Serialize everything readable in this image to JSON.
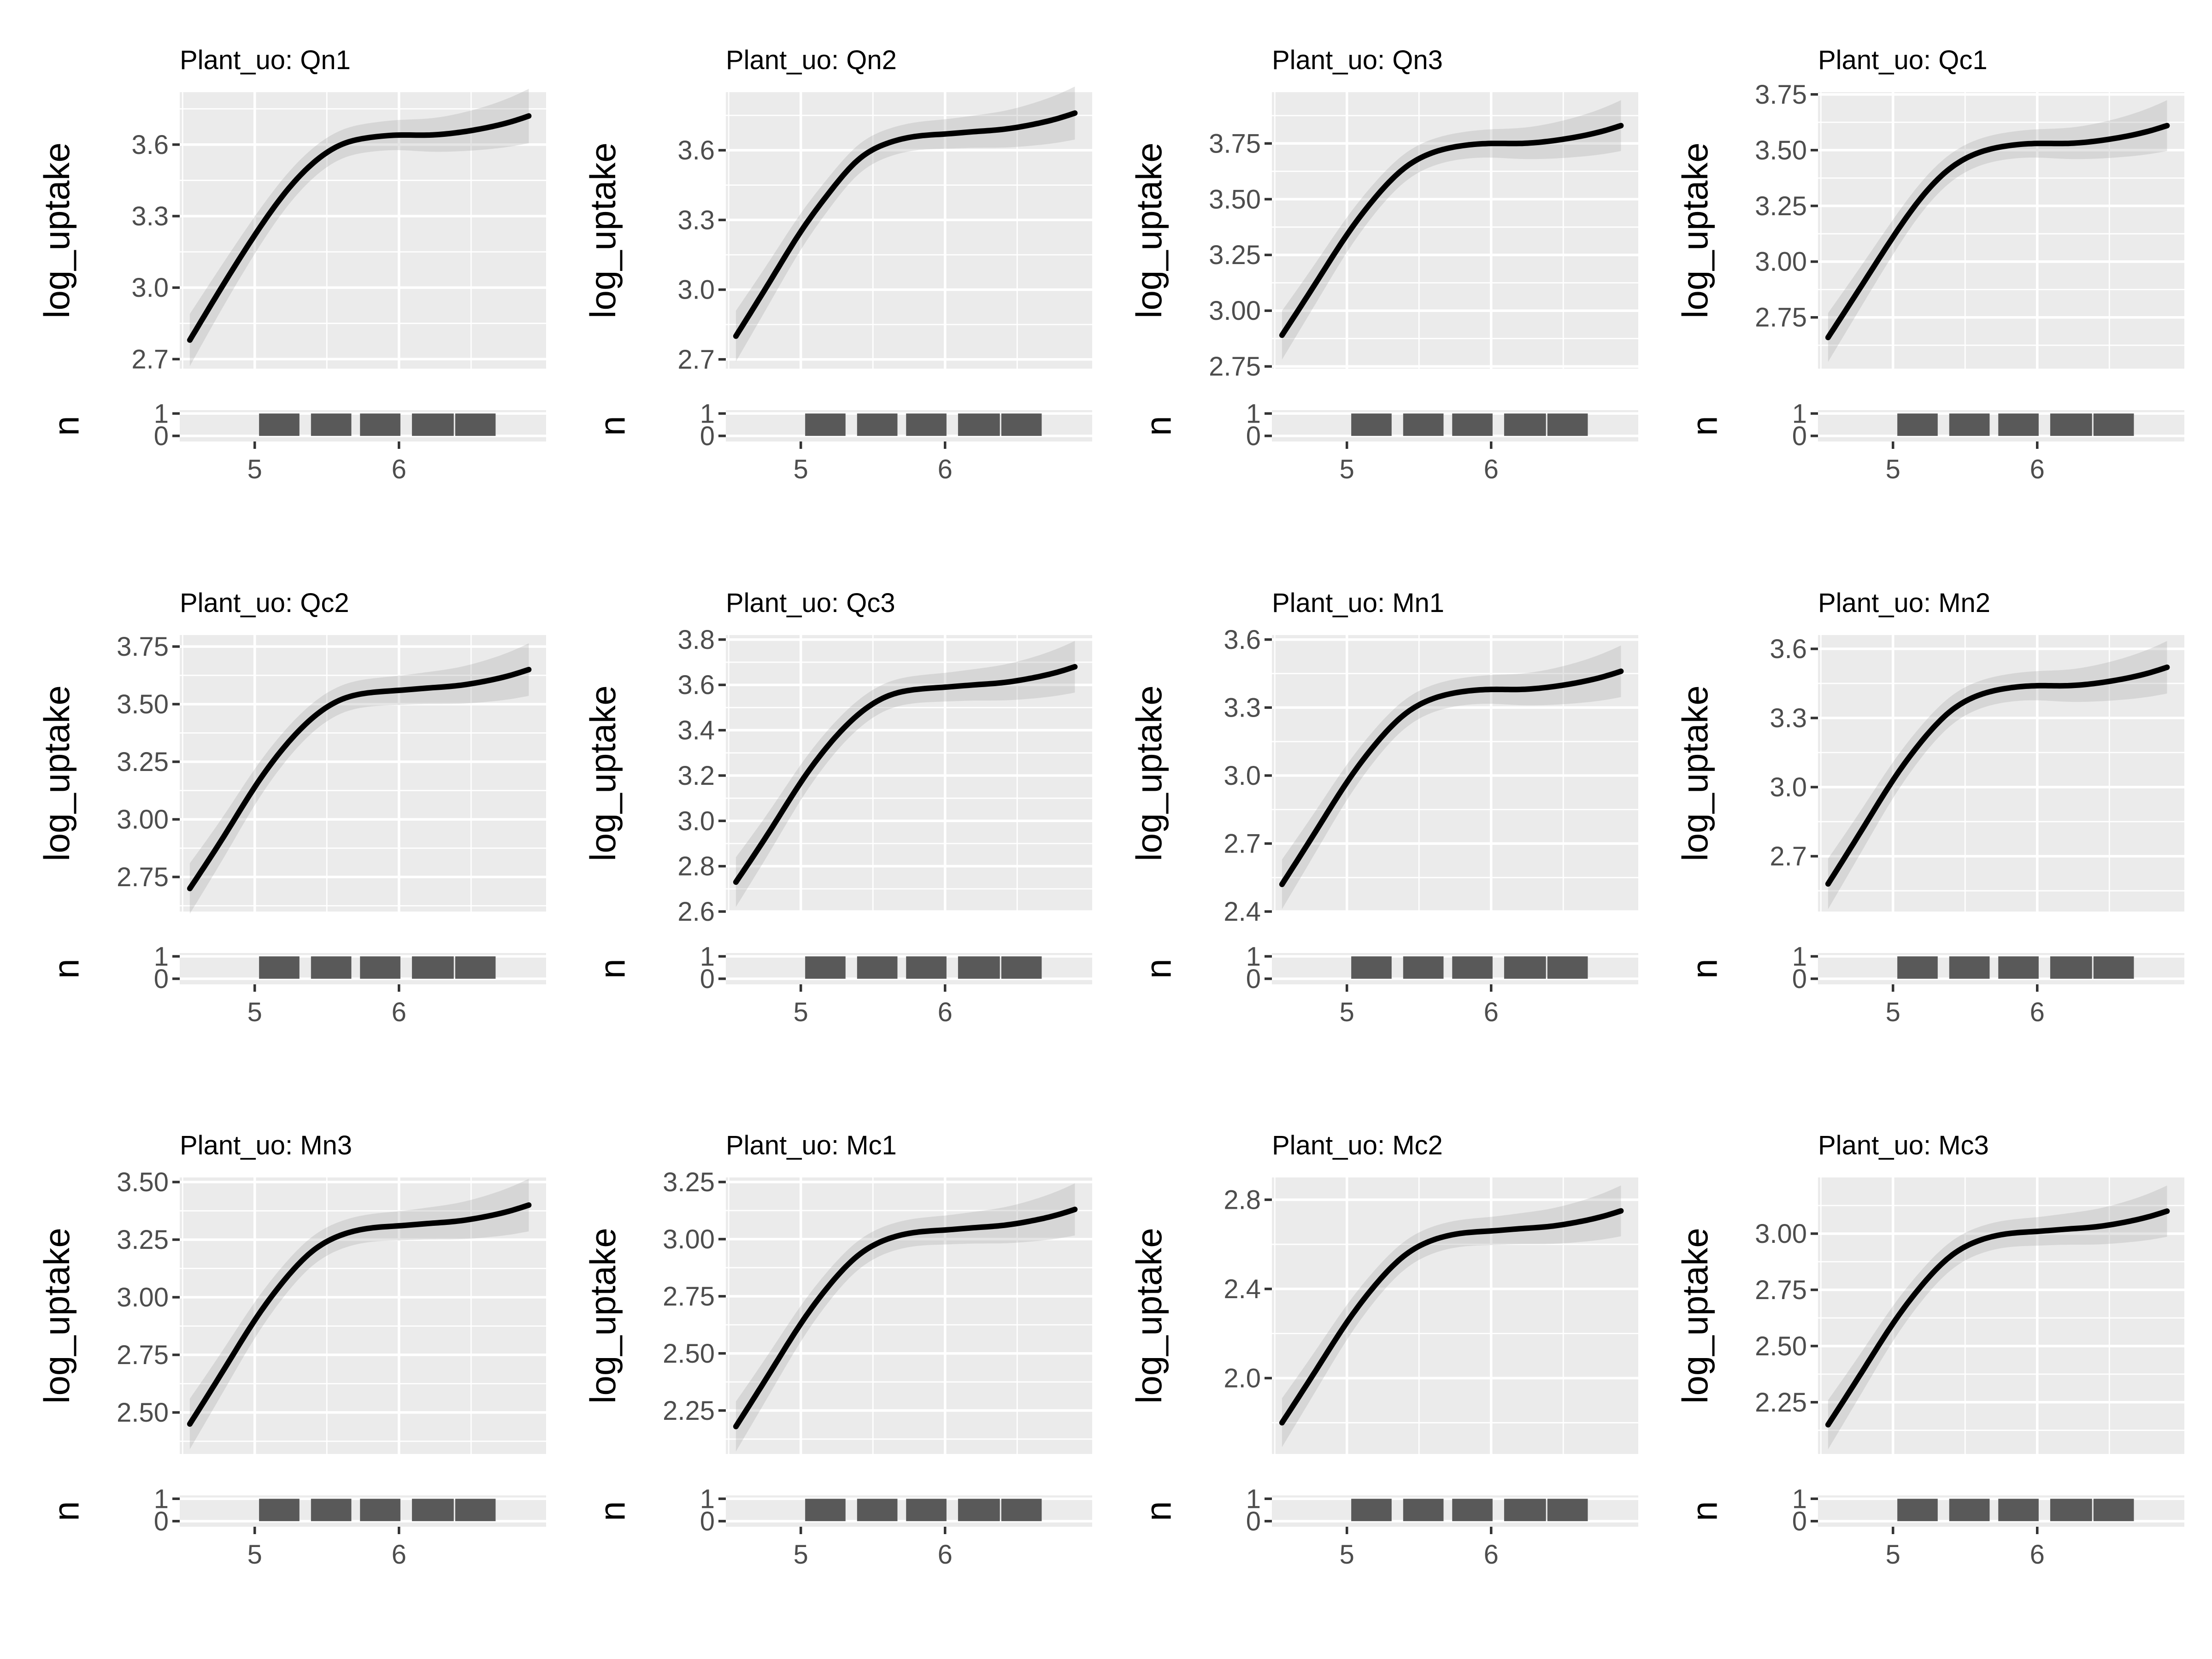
{
  "chart_data": [
    {
      "type": "line",
      "title": "Plant_uo: Qn1",
      "ylabel": "log_uptake",
      "ylim": [
        2.66,
        3.82
      ],
      "yticks": [
        "2.7",
        "3.0",
        "3.3",
        "3.6"
      ],
      "curve": {
        "x": [
          4.55,
          4.8,
          5.0,
          5.2,
          5.4,
          5.6,
          5.8,
          6.0,
          6.2,
          6.4,
          6.6,
          6.8,
          6.9
        ],
        "y": [
          2.78,
          3.03,
          3.22,
          3.39,
          3.52,
          3.6,
          3.63,
          3.64,
          3.64,
          3.65,
          3.67,
          3.7,
          3.72
        ]
      },
      "rug": {
        "ylabel": "n",
        "yticks": [
          "0",
          "1"
        ],
        "xticks": [
          "5",
          "6"
        ]
      }
    },
    {
      "type": "line",
      "title": "Plant_uo: Qn2",
      "ylabel": "log_uptake",
      "ylim": [
        2.66,
        3.85
      ],
      "yticks": [
        "2.7",
        "3.0",
        "3.3",
        "3.6"
      ],
      "curve": {
        "x": [
          4.55,
          4.8,
          5.0,
          5.2,
          5.4,
          5.6,
          5.8,
          6.0,
          6.2,
          6.4,
          6.6,
          6.8,
          6.9
        ],
        "y": [
          2.8,
          3.05,
          3.25,
          3.42,
          3.56,
          3.63,
          3.66,
          3.67,
          3.68,
          3.69,
          3.71,
          3.74,
          3.76
        ]
      },
      "rug": {
        "ylabel": "n",
        "yticks": [
          "0",
          "1"
        ],
        "xticks": [
          "5",
          "6"
        ]
      }
    },
    {
      "type": "line",
      "title": "Plant_uo: Qn3",
      "ylabel": "log_uptake",
      "ylim": [
        2.74,
        3.98
      ],
      "yticks": [
        "2.75",
        "3.00",
        "3.25",
        "3.50",
        "3.75"
      ],
      "curve": {
        "x": [
          4.55,
          4.8,
          5.0,
          5.2,
          5.4,
          5.6,
          5.8,
          6.0,
          6.2,
          6.4,
          6.6,
          6.8,
          6.9
        ],
        "y": [
          2.89,
          3.14,
          3.34,
          3.51,
          3.64,
          3.71,
          3.74,
          3.75,
          3.75,
          3.76,
          3.78,
          3.81,
          3.83
        ]
      },
      "rug": {
        "ylabel": "n",
        "yticks": [
          "0",
          "1"
        ],
        "xticks": [
          "5",
          "6"
        ]
      }
    },
    {
      "type": "line",
      "title": "Plant_uo: Qc1",
      "ylabel": "log_uptake",
      "ylim": [
        2.52,
        3.76
      ],
      "yticks": [
        "2.75",
        "3.00",
        "3.25",
        "3.50",
        "3.75"
      ],
      "curve": {
        "x": [
          4.55,
          4.8,
          5.0,
          5.2,
          5.4,
          5.6,
          5.8,
          6.0,
          6.2,
          6.4,
          6.6,
          6.8,
          6.9
        ],
        "y": [
          2.66,
          2.91,
          3.11,
          3.29,
          3.42,
          3.49,
          3.52,
          3.53,
          3.53,
          3.54,
          3.56,
          3.59,
          3.61
        ]
      },
      "rug": {
        "ylabel": "n",
        "yticks": [
          "0",
          "1"
        ],
        "xticks": [
          "5",
          "6"
        ]
      }
    },
    {
      "type": "line",
      "title": "Plant_uo: Qc2",
      "ylabel": "log_uptake",
      "ylim": [
        2.6,
        3.8
      ],
      "yticks": [
        "2.75",
        "3.00",
        "3.25",
        "3.50",
        "3.75"
      ],
      "curve": {
        "x": [
          4.55,
          4.8,
          5.0,
          5.2,
          5.4,
          5.6,
          5.8,
          6.0,
          6.2,
          6.4,
          6.6,
          6.8,
          6.9
        ],
        "y": [
          2.7,
          2.94,
          3.14,
          3.31,
          3.44,
          3.52,
          3.55,
          3.56,
          3.57,
          3.58,
          3.6,
          3.63,
          3.65
        ]
      },
      "rug": {
        "ylabel": "n",
        "yticks": [
          "0",
          "1"
        ],
        "xticks": [
          "5",
          "6"
        ]
      }
    },
    {
      "type": "line",
      "title": "Plant_uo: Qc3",
      "ylabel": "log_uptake",
      "ylim": [
        2.6,
        3.82
      ],
      "yticks": [
        "2.6",
        "2.8",
        "3.0",
        "3.2",
        "3.4",
        "3.6",
        "3.8"
      ],
      "curve": {
        "x": [
          4.55,
          4.8,
          5.0,
          5.2,
          5.4,
          5.6,
          5.8,
          6.0,
          6.2,
          6.4,
          6.6,
          6.8,
          6.9
        ],
        "y": [
          2.73,
          2.97,
          3.17,
          3.34,
          3.47,
          3.55,
          3.58,
          3.59,
          3.6,
          3.61,
          3.63,
          3.66,
          3.68
        ]
      },
      "rug": {
        "ylabel": "n",
        "yticks": [
          "0",
          "1"
        ],
        "xticks": [
          "5",
          "6"
        ]
      }
    },
    {
      "type": "line",
      "title": "Plant_uo: Mn1",
      "ylabel": "log_uptake",
      "ylim": [
        2.4,
        3.62
      ],
      "yticks": [
        "2.4",
        "2.7",
        "3.0",
        "3.3",
        "3.6"
      ],
      "curve": {
        "x": [
          4.55,
          4.8,
          5.0,
          5.2,
          5.4,
          5.6,
          5.8,
          6.0,
          6.2,
          6.4,
          6.6,
          6.8,
          6.9
        ],
        "y": [
          2.52,
          2.77,
          2.97,
          3.14,
          3.27,
          3.34,
          3.37,
          3.38,
          3.38,
          3.39,
          3.41,
          3.44,
          3.46
        ]
      },
      "rug": {
        "ylabel": "n",
        "yticks": [
          "0",
          "1"
        ],
        "xticks": [
          "5",
          "6"
        ]
      }
    },
    {
      "type": "line",
      "title": "Plant_uo: Mn2",
      "ylabel": "log_uptake",
      "ylim": [
        2.46,
        3.66
      ],
      "yticks": [
        "2.7",
        "3.0",
        "3.3",
        "3.6"
      ],
      "curve": {
        "x": [
          4.55,
          4.8,
          5.0,
          5.2,
          5.4,
          5.6,
          5.8,
          6.0,
          6.2,
          6.4,
          6.6,
          6.8,
          6.9
        ],
        "y": [
          2.58,
          2.83,
          3.03,
          3.2,
          3.33,
          3.4,
          3.43,
          3.44,
          3.44,
          3.45,
          3.47,
          3.5,
          3.52
        ]
      },
      "rug": {
        "ylabel": "n",
        "yticks": [
          "0",
          "1"
        ],
        "xticks": [
          "5",
          "6"
        ]
      }
    },
    {
      "type": "line",
      "title": "Plant_uo: Mn3",
      "ylabel": "log_uptake",
      "ylim": [
        2.32,
        3.52
      ],
      "yticks": [
        "2.50",
        "2.75",
        "3.00",
        "3.25",
        "3.50"
      ],
      "curve": {
        "x": [
          4.55,
          4.8,
          5.0,
          5.2,
          5.4,
          5.6,
          5.8,
          6.0,
          6.2,
          6.4,
          6.6,
          6.8,
          6.9
        ],
        "y": [
          2.45,
          2.7,
          2.9,
          3.07,
          3.2,
          3.27,
          3.3,
          3.31,
          3.32,
          3.33,
          3.35,
          3.38,
          3.4
        ]
      },
      "rug": {
        "ylabel": "n",
        "yticks": [
          "0",
          "1"
        ],
        "xticks": [
          "5",
          "6"
        ]
      }
    },
    {
      "type": "line",
      "title": "Plant_uo: Mc1",
      "ylabel": "log_uptake",
      "ylim": [
        2.06,
        3.27
      ],
      "yticks": [
        "2.25",
        "2.50",
        "2.75",
        "3.00",
        "3.25"
      ],
      "curve": {
        "x": [
          4.55,
          4.8,
          5.0,
          5.2,
          5.4,
          5.6,
          5.8,
          6.0,
          6.2,
          6.4,
          6.6,
          6.8,
          6.9
        ],
        "y": [
          2.18,
          2.43,
          2.63,
          2.8,
          2.93,
          3.0,
          3.03,
          3.04,
          3.05,
          3.06,
          3.08,
          3.11,
          3.13
        ]
      },
      "rug": {
        "ylabel": "n",
        "yticks": [
          "0",
          "1"
        ],
        "xticks": [
          "5",
          "6"
        ]
      }
    },
    {
      "type": "line",
      "title": "Plant_uo: Mc2",
      "ylabel": "log_uptake",
      "ylim": [
        1.66,
        2.9
      ],
      "yticks": [
        "2.0",
        "2.4",
        "2.8"
      ],
      "curve": {
        "x": [
          4.55,
          4.8,
          5.0,
          5.2,
          5.4,
          5.6,
          5.8,
          6.0,
          6.2,
          6.4,
          6.6,
          6.8,
          6.9
        ],
        "y": [
          1.8,
          2.05,
          2.25,
          2.42,
          2.55,
          2.62,
          2.65,
          2.66,
          2.67,
          2.68,
          2.7,
          2.73,
          2.75
        ]
      },
      "rug": {
        "ylabel": "n",
        "yticks": [
          "0",
          "1"
        ],
        "xticks": [
          "5",
          "6"
        ]
      }
    },
    {
      "type": "line",
      "title": "Plant_uo: Mc3",
      "ylabel": "log_uptake",
      "ylim": [
        2.02,
        3.25
      ],
      "yticks": [
        "2.25",
        "2.50",
        "2.75",
        "3.00"
      ],
      "curve": {
        "x": [
          4.55,
          4.8,
          5.0,
          5.2,
          5.4,
          5.6,
          5.8,
          6.0,
          6.2,
          6.4,
          6.6,
          6.8,
          6.9
        ],
        "y": [
          2.15,
          2.4,
          2.6,
          2.77,
          2.9,
          2.97,
          3.0,
          3.01,
          3.02,
          3.03,
          3.05,
          3.08,
          3.1
        ]
      },
      "rug": {
        "ylabel": "n",
        "yticks": [
          "0",
          "1"
        ],
        "xticks": [
          "5",
          "6"
        ]
      }
    }
  ],
  "shared": {
    "xlim": [
      4.48,
      7.02
    ],
    "x_breaks": [
      5,
      6
    ],
    "x_minor": [
      4.5,
      5.5,
      6.5
    ],
    "rug_bins": [
      [
        5.03,
        5.31
      ],
      [
        5.39,
        5.67
      ],
      [
        5.73,
        6.01
      ],
      [
        6.09,
        6.38
      ],
      [
        6.39,
        6.67
      ]
    ],
    "rug_ylim": [
      -0.25,
      1.15
    ],
    "ribbon_halfwidth": 0.06
  }
}
